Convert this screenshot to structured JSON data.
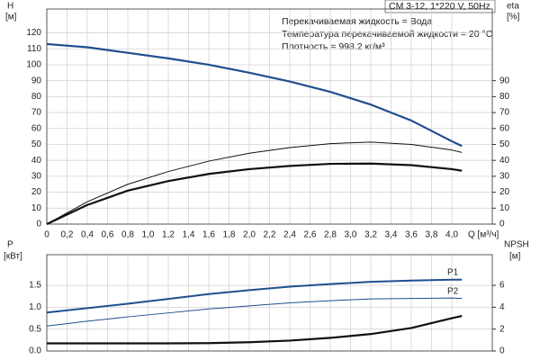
{
  "chart_data": [
    {
      "type": "line",
      "annotations": [
        "CM 3-12, 1*220 V, 50Hz",
        "Перекачиваемая жидкость = Вода",
        "Температура перекачиваемой жидкости = 20 °C",
        "Плотность = 998.2 кг/м³"
      ],
      "ylabel": "H",
      "ylabel_unit": "[м]",
      "y2label": "eta",
      "y2label_unit": "[%]",
      "xlabel": "Q [м³/ч]",
      "x": [
        0,
        0.4,
        0.8,
        1.2,
        1.6,
        2.0,
        2.4,
        2.8,
        3.2,
        3.6,
        4.0,
        4.1
      ],
      "xlim": [
        0,
        4.4
      ],
      "xticks": [
        0,
        {
          "value": 0.2,
          "label": "0,2"
        },
        {
          "value": 0.4,
          "label": "0,4"
        },
        {
          "value": 0.6,
          "label": "0,6"
        },
        {
          "value": 0.8,
          "label": "0,8"
        },
        {
          "value": 1.0,
          "label": "1,0"
        },
        {
          "value": 1.2,
          "label": "1,2"
        },
        {
          "value": 1.4,
          "label": "1,4"
        },
        {
          "value": 1.6,
          "label": "1,6"
        },
        {
          "value": 1.8,
          "label": "1,8"
        },
        {
          "value": 2.0,
          "label": "2,0"
        },
        {
          "value": 2.2,
          "label": "2,2"
        },
        {
          "value": 2.4,
          "label": "2,4"
        },
        {
          "value": 2.6,
          "label": "2,6"
        },
        {
          "value": 2.8,
          "label": "2,8"
        },
        {
          "value": 3.0,
          "label": "3,0"
        },
        {
          "value": 3.2,
          "label": "3,2"
        },
        {
          "value": 3.4,
          "label": "3,4"
        },
        {
          "value": 3.6,
          "label": "3,6"
        },
        {
          "value": 3.8,
          "label": "3,8"
        },
        {
          "value": 4.0,
          "label": "4,0"
        }
      ],
      "ylim": [
        0,
        135
      ],
      "yticks": [
        0,
        10,
        20,
        30,
        40,
        50,
        60,
        70,
        80,
        90,
        100,
        110,
        120
      ],
      "y2lim": [
        0,
        135
      ],
      "y2ticks": [
        0,
        10,
        20,
        30,
        40,
        50,
        60,
        70,
        80,
        90
      ],
      "grid": true,
      "series": [
        {
          "color": "#1f4f8f",
          "line_width": 2.2,
          "values": [
            113,
            111,
            107.5,
            104,
            100,
            95,
            89.5,
            83,
            75,
            65,
            52,
            49
          ]
        },
        {
          "color": "#111111",
          "line_width": 1,
          "axis": "y2",
          "values": [
            0,
            14,
            25,
            33,
            39.5,
            44.5,
            48,
            50.5,
            51.5,
            50,
            46.5,
            45
          ]
        },
        {
          "color": "#111111",
          "line_width": 2.2,
          "axis": "y2",
          "values": [
            0,
            12,
            21,
            27,
            31.5,
            34.5,
            36.5,
            37.8,
            38,
            37,
            34.5,
            33.5
          ]
        }
      ]
    },
    {
      "type": "line",
      "ylabel": "P",
      "ylabel_unit": "[кВт]",
      "y2label": "NPSH",
      "y2label_unit": "[м]",
      "x": [
        0,
        0.4,
        0.8,
        1.2,
        1.6,
        2.0,
        2.4,
        2.8,
        3.2,
        3.6,
        4.0,
        4.1
      ],
      "xlim": [
        0,
        4.4
      ],
      "xticks": [
        0,
        0.2,
        0.4,
        0.6,
        0.8,
        1.0,
        1.2,
        1.4,
        1.6,
        1.8,
        2.0,
        2.2,
        2.4,
        2.6,
        2.8,
        3.0,
        3.2,
        3.4,
        3.6,
        3.8,
        4.0
      ],
      "ylim": [
        0,
        2.2
      ],
      "yticks": [
        {
          "value": 0,
          "label": "0.0"
        },
        {
          "value": 0.5,
          "label": "0.5"
        },
        {
          "value": 1.0,
          "label": "1.0"
        },
        {
          "value": 1.5,
          "label": "1.5"
        }
      ],
      "y2lim": [
        0,
        8.8
      ],
      "y2ticks": [
        0,
        2,
        4,
        6
      ],
      "grid": true,
      "series": [
        {
          "name": "P1",
          "color": "#1f4f8f",
          "line_width": 2,
          "values": [
            0.88,
            0.98,
            1.08,
            1.19,
            1.3,
            1.39,
            1.47,
            1.53,
            1.58,
            1.61,
            1.63,
            1.63
          ]
        },
        {
          "name": "P2",
          "color": "#1f4f8f",
          "line_width": 1,
          "values": [
            0.57,
            0.68,
            0.78,
            0.87,
            0.96,
            1.03,
            1.1,
            1.15,
            1.19,
            1.2,
            1.21,
            1.2
          ]
        },
        {
          "color": "#111111",
          "line_width": 2.2,
          "axis": "y2",
          "values": [
            0.7,
            0.7,
            0.7,
            0.7,
            0.72,
            0.8,
            0.95,
            1.2,
            1.55,
            2.1,
            3.0,
            3.2
          ]
        }
      ]
    }
  ]
}
